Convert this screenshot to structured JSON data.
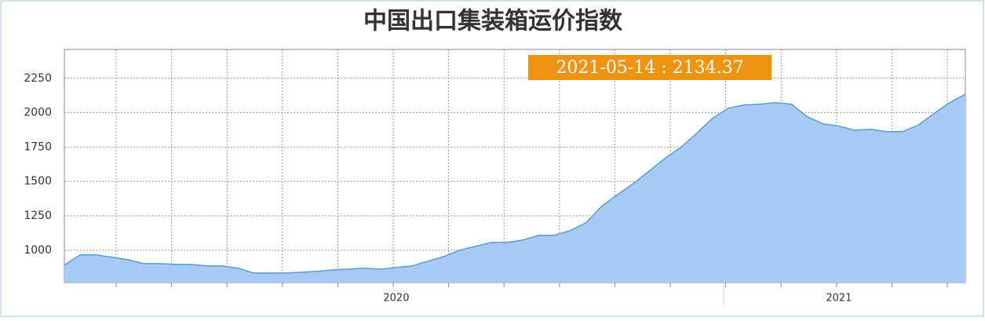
{
  "chart_data": {
    "type": "area",
    "title": "中国出口集装箱运价指数",
    "annotation": "2021-05-14 : 2134.37",
    "categories": [
      null,
      null,
      null,
      null,
      null,
      null,
      null,
      null,
      null,
      null,
      null,
      null,
      null,
      null,
      null,
      null,
      null,
      null,
      null,
      null,
      null,
      "2020",
      null,
      null,
      null,
      null,
      null,
      null,
      null,
      null,
      null,
      null,
      null,
      null,
      null,
      null,
      null,
      null,
      null,
      null,
      null,
      null,
      null,
      null,
      null,
      null,
      null,
      null,
      null,
      "2021",
      null,
      null,
      null,
      null,
      null,
      null,
      null,
      null
    ],
    "values": [
      892,
      966,
      966,
      949,
      932,
      903,
      903,
      897,
      897,
      886,
      886,
      869,
      834,
      834,
      834,
      840,
      846,
      857,
      863,
      869,
      863,
      874,
      886,
      920,
      954,
      1000,
      1028,
      1057,
      1057,
      1074,
      1108,
      1108,
      1143,
      1200,
      1320,
      1405,
      1485,
      1576,
      1668,
      1748,
      1850,
      1959,
      2033,
      2056,
      2062,
      2073,
      2062,
      1970,
      1919,
      1902,
      1873,
      1879,
      1862,
      1862,
      1908,
      1993,
      2073,
      2134.37
    ],
    "color": "#a7cbf4",
    "line_color": "#5b9bd1",
    "annotation_color": "#ee9410",
    "ylim": [
      765,
      2460
    ],
    "yticks": [
      1000,
      1250,
      1500,
      1750,
      2000,
      2250
    ],
    "grid": true
  }
}
